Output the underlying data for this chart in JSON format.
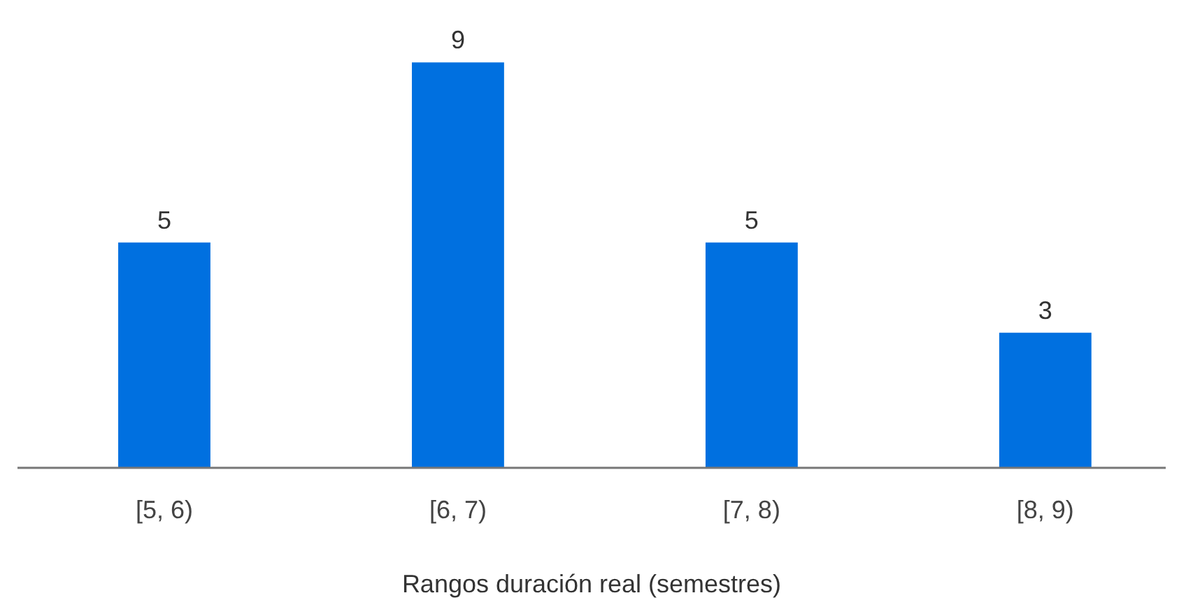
{
  "chart_data": {
    "type": "bar",
    "xlabel": "Rangos duración real (semestres)",
    "categories": [
      "[5, 6)",
      "[6, 7)",
      "[7, 8)",
      "[8, 9)"
    ],
    "values": [
      5,
      9,
      5,
      3
    ],
    "color": "#0070e0",
    "data_labels": true,
    "grid": false
  }
}
